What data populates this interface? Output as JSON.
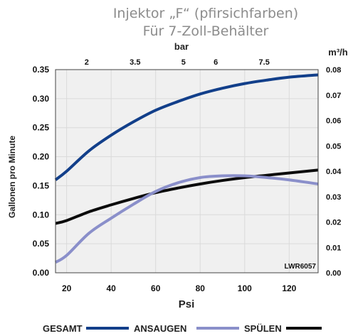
{
  "chart_data": {
    "type": "line",
    "title": "Injektor „F“ (pfirsichfarben)",
    "subtitle": "Für 7-Zoll-Behälter",
    "xlabel": "Psi",
    "ylabel": "Gallonen pro Minute",
    "x2label": "bar",
    "y2label": "m³/h",
    "code": "LWR6057",
    "xlim": [
      15,
      133
    ],
    "ylim": [
      0,
      0.35
    ],
    "x_ticks": [
      "20",
      "40",
      "60",
      "80",
      "100",
      "120"
    ],
    "y_ticks": [
      "0.00",
      "0.05",
      "0.10",
      "0.15",
      "0.20",
      "0.25",
      "0.30",
      "0.35"
    ],
    "x2_ticks": [
      "2",
      "3.5",
      "5",
      "6",
      "7.5"
    ],
    "x2_tick_psi": [
      29,
      50.75,
      72.5,
      87,
      108.75
    ],
    "y2_ticks": [
      "0.00",
      "0.01",
      "0.02",
      "0.03",
      "0.04",
      "0.05",
      "0.06",
      "0.07",
      "0.08"
    ],
    "grid": true,
    "legend_position": "bottom",
    "colors": {
      "gesamt": "#123f8a",
      "ansaugen": "#8a8fca",
      "spuelen": "#0b0b0b",
      "grid": "#dadada",
      "plot_bg": "#f0f0f0"
    },
    "series": [
      {
        "name": "GESAMT",
        "color": "#123f8a",
        "x": [
          15,
          20,
          30,
          40,
          50,
          60,
          70,
          80,
          90,
          100,
          110,
          120,
          133
        ],
        "y": [
          0.16,
          0.175,
          0.21,
          0.237,
          0.26,
          0.28,
          0.295,
          0.308,
          0.318,
          0.326,
          0.332,
          0.337,
          0.341
        ]
      },
      {
        "name": "ANSAUGEN",
        "color": "#8a8fca",
        "x": [
          15,
          20,
          30,
          40,
          50,
          60,
          70,
          80,
          90,
          100,
          110,
          120,
          133
        ],
        "y": [
          0.018,
          0.03,
          0.068,
          0.094,
          0.118,
          0.14,
          0.155,
          0.164,
          0.167,
          0.167,
          0.164,
          0.16,
          0.153
        ]
      },
      {
        "name": "SPÜLEN",
        "color": "#0b0b0b",
        "x": [
          15,
          20,
          30,
          40,
          50,
          60,
          70,
          80,
          90,
          100,
          110,
          120,
          133
        ],
        "y": [
          0.085,
          0.09,
          0.105,
          0.117,
          0.128,
          0.138,
          0.146,
          0.153,
          0.159,
          0.164,
          0.168,
          0.172,
          0.177
        ]
      }
    ]
  }
}
